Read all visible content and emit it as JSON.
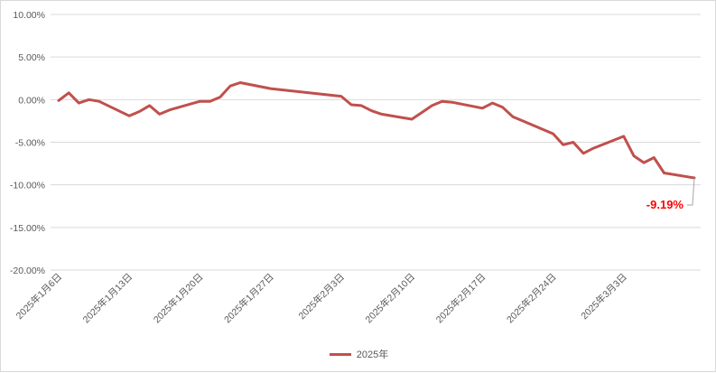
{
  "chart_data": {
    "type": "line",
    "title": "",
    "xlabel": "",
    "ylabel": "",
    "ylim": [
      -20,
      10
    ],
    "y_ticks": [
      10,
      5,
      0,
      -5,
      -10,
      -15,
      -20
    ],
    "y_tick_labels": [
      "10.00%",
      "5.00%",
      "0.00%",
      "-5.00%",
      "-10.00%",
      "-15.00%",
      "-20.00%"
    ],
    "x_tick_dates": [
      "2025-01-06",
      "2025-01-13",
      "2025-01-20",
      "2025-01-27",
      "2025-02-03",
      "2025-02-10",
      "2025-02-17",
      "2025-02-24",
      "2025-03-03"
    ],
    "x_tick_labels": [
      "2025年1月6日",
      "2025年1月13日",
      "2025年1月20日",
      "2025年1月27日",
      "2025年2月3日",
      "2025年2月10日",
      "2025年2月17日",
      "2025年2月24日",
      "2025年3月3日"
    ],
    "x_range": [
      "2025-01-06",
      "2025-03-10"
    ],
    "grid": "horizontal",
    "legend_position": "bottom",
    "series": [
      {
        "name": "2025年",
        "color": "#c0504d",
        "x": [
          "2025-01-06",
          "2025-01-07",
          "2025-01-08",
          "2025-01-09",
          "2025-01-10",
          "2025-01-13",
          "2025-01-14",
          "2025-01-15",
          "2025-01-16",
          "2025-01-17",
          "2025-01-20",
          "2025-01-21",
          "2025-01-22",
          "2025-01-23",
          "2025-01-24",
          "2025-01-27",
          "2025-02-03",
          "2025-02-04",
          "2025-02-05",
          "2025-02-06",
          "2025-02-07",
          "2025-02-10",
          "2025-02-11",
          "2025-02-12",
          "2025-02-13",
          "2025-02-14",
          "2025-02-17",
          "2025-02-18",
          "2025-02-19",
          "2025-02-20",
          "2025-02-21",
          "2025-02-24",
          "2025-02-25",
          "2025-02-26",
          "2025-02-27",
          "2025-02-28",
          "2025-03-03",
          "2025-03-04",
          "2025-03-05",
          "2025-03-06",
          "2025-03-07",
          "2025-03-10"
        ],
        "values": [
          -0.1,
          0.8,
          -0.4,
          0.0,
          -0.2,
          -1.9,
          -1.4,
          -0.7,
          -1.7,
          -1.2,
          -0.2,
          -0.2,
          0.3,
          1.6,
          2.0,
          1.3,
          0.4,
          -0.6,
          -0.7,
          -1.3,
          -1.7,
          -2.3,
          -1.5,
          -0.7,
          -0.2,
          -0.3,
          -1.0,
          -0.4,
          -0.9,
          -2.0,
          -2.5,
          -4.0,
          -5.3,
          -5.0,
          -6.3,
          -5.7,
          -4.3,
          -6.6,
          -7.4,
          -6.8,
          -8.6,
          -9.19
        ],
        "last_label": "-9.19%",
        "last_label_color": "#ff0000"
      }
    ]
  }
}
